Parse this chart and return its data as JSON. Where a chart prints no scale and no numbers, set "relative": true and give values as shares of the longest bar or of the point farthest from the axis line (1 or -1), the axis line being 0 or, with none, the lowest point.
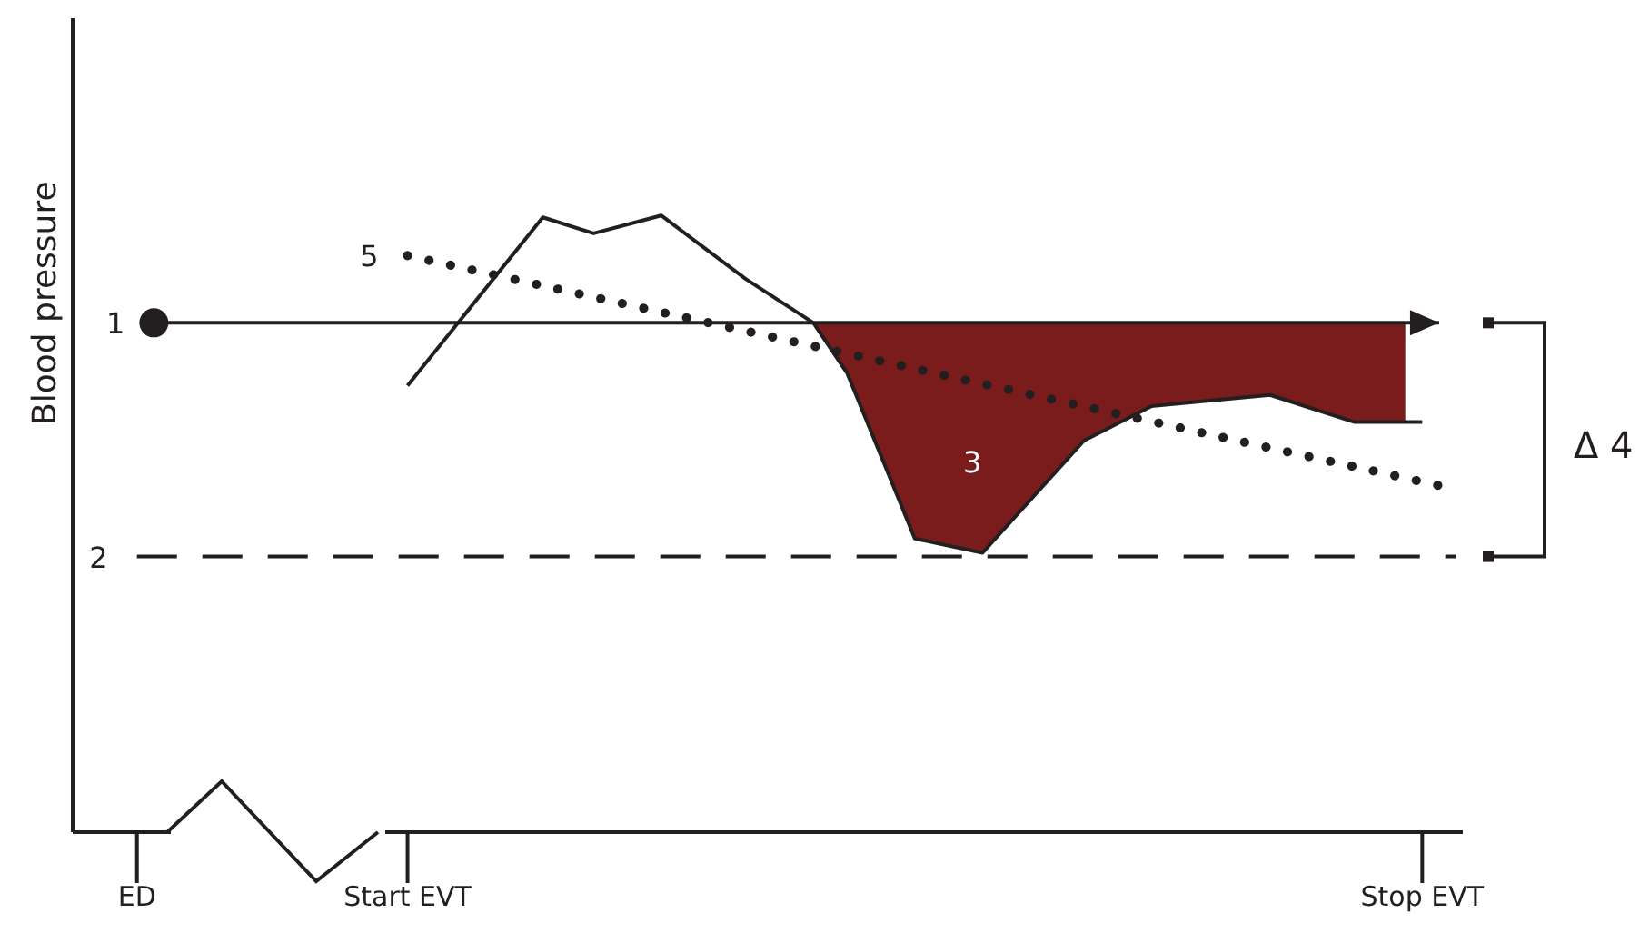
{
  "chart_data": {
    "type": "line",
    "relative": true,
    "ylabel": "Blood pressure",
    "categories": [
      "ED",
      null,
      null,
      null,
      null,
      null,
      null,
      null,
      null,
      null,
      null,
      null,
      null,
      null,
      null,
      null,
      "Start EVT",
      null,
      null,
      null,
      null,
      null,
      null,
      null,
      null,
      null,
      null,
      null,
      null,
      null,
      null,
      null,
      null,
      null,
      null,
      null,
      null,
      null,
      null,
      null,
      null,
      null,
      null,
      null,
      null,
      null,
      null,
      null,
      null,
      null,
      null,
      null,
      null,
      null,
      null,
      null,
      null,
      null,
      null,
      null,
      null,
      null,
      null,
      null,
      null,
      null,
      null,
      null,
      null,
      null,
      null,
      null,
      null,
      null,
      null,
      null,
      "Stop EVT",
      null,
      null
    ],
    "annotations": [
      "3",
      "Δ 4"
    ],
    "grid": false,
    "legend": false,
    "series": [
      {
        "name": "1",
        "type": "line",
        "color": "#231f20",
        "marker": "circle",
        "values": [
          null,
          0.826,
          null,
          null,
          null,
          null,
          null,
          null,
          null,
          null,
          null,
          null,
          null,
          null,
          null,
          null,
          null,
          null,
          null,
          null,
          null,
          null,
          null,
          null,
          null,
          null,
          null,
          null,
          null,
          null,
          null,
          null,
          null,
          null,
          null,
          null,
          null,
          null,
          null,
          null,
          null,
          null,
          null,
          null,
          null,
          null,
          null,
          null,
          null,
          null,
          null,
          null,
          null,
          null,
          null,
          null,
          null,
          null,
          null,
          null,
          null,
          null,
          null,
          null,
          null,
          null,
          null,
          null,
          null,
          null,
          null,
          null,
          null,
          null,
          null,
          null,
          null,
          0.826,
          null
        ]
      },
      {
        "name": "2",
        "type": "line",
        "color": "#231f20",
        "line_style": "dashed",
        "values": [
          0.447,
          null,
          null,
          null,
          null,
          null,
          null,
          null,
          null,
          null,
          null,
          null,
          null,
          null,
          null,
          null,
          null,
          null,
          null,
          null,
          null,
          null,
          null,
          null,
          null,
          null,
          null,
          null,
          null,
          null,
          null,
          null,
          null,
          null,
          null,
          null,
          null,
          null,
          null,
          null,
          null,
          null,
          null,
          null,
          null,
          null,
          null,
          null,
          null,
          null,
          null,
          null,
          null,
          null,
          null,
          null,
          null,
          null,
          null,
          null,
          null,
          null,
          null,
          null,
          null,
          null,
          null,
          null,
          null,
          null,
          null,
          null,
          null,
          null,
          null,
          null,
          null,
          null,
          0.447
        ]
      },
      {
        "name": "5",
        "type": "line",
        "color": "#231f20",
        "line_style": "dotted",
        "values": [
          null,
          null,
          null,
          null,
          null,
          null,
          null,
          null,
          null,
          null,
          null,
          null,
          null,
          null,
          null,
          null,
          0.935,
          null,
          null,
          null,
          null,
          null,
          null,
          null,
          null,
          null,
          null,
          null,
          null,
          null,
          null,
          null,
          null,
          null,
          null,
          null,
          null,
          null,
          null,
          null,
          null,
          null,
          null,
          null,
          null,
          null,
          null,
          null,
          null,
          null,
          null,
          null,
          null,
          null,
          null,
          null,
          null,
          null,
          null,
          null,
          null,
          null,
          null,
          null,
          null,
          null,
          null,
          null,
          null,
          null,
          null,
          null,
          null,
          null,
          null,
          null,
          null,
          0.562,
          null
        ]
      },
      {
        "color": "#231f20",
        "values": [
          null,
          null,
          null,
          null,
          null,
          null,
          null,
          null,
          null,
          null,
          null,
          null,
          null,
          null,
          null,
          null,
          0.724,
          null,
          null,
          null,
          null,
          null,
          null,
          null,
          0.997,
          null,
          null,
          0.971,
          null,
          null,
          null,
          1,
          null,
          null,
          null,
          null,
          0.897,
          null,
          null,
          null,
          0.826,
          null,
          0.744,
          null,
          null,
          null,
          0.476,
          null,
          null,
          null,
          0.453,
          null,
          null,
          null,
          null,
          null,
          0.635,
          null,
          null,
          null,
          0.691,
          null,
          null,
          null,
          null,
          null,
          null,
          0.709,
          null,
          null,
          null,
          null,
          0.665,
          null,
          null,
          null,
          0.665,
          null,
          null
        ],
        "lower": [
          null,
          null,
          null,
          null,
          null,
          null,
          null,
          null,
          null,
          null,
          null,
          null,
          null,
          null,
          null,
          null,
          null,
          null,
          null,
          null,
          null,
          null,
          null,
          null,
          null,
          null,
          null,
          null,
          null,
          null,
          null,
          null,
          null,
          null,
          null,
          null,
          null,
          null,
          null,
          null,
          0.826,
          null,
          0.744,
          null,
          null,
          null,
          0.476,
          null,
          null,
          null,
          0.453,
          null,
          null,
          null,
          null,
          null,
          0.635,
          null,
          null,
          null,
          0.691,
          null,
          null,
          null,
          null,
          null,
          null,
          0.709,
          null,
          null,
          null,
          null,
          0.665,
          null,
          null,
          0.665,
          null,
          null,
          null
        ],
        "upper": [
          null,
          null,
          null,
          null,
          null,
          null,
          null,
          null,
          null,
          null,
          null,
          null,
          null,
          null,
          null,
          null,
          null,
          null,
          null,
          null,
          null,
          null,
          null,
          null,
          null,
          null,
          null,
          null,
          null,
          null,
          null,
          null,
          null,
          null,
          null,
          null,
          null,
          null,
          null,
          null,
          0.826,
          null,
          0.826,
          null,
          null,
          null,
          0.826,
          null,
          null,
          null,
          0.826,
          null,
          null,
          null,
          null,
          null,
          0.826,
          null,
          null,
          null,
          0.826,
          null,
          null,
          null,
          null,
          null,
          null,
          0.826,
          null,
          null,
          null,
          null,
          0.826,
          null,
          null,
          0.826,
          null,
          null,
          null
        ]
      }
    ]
  }
}
